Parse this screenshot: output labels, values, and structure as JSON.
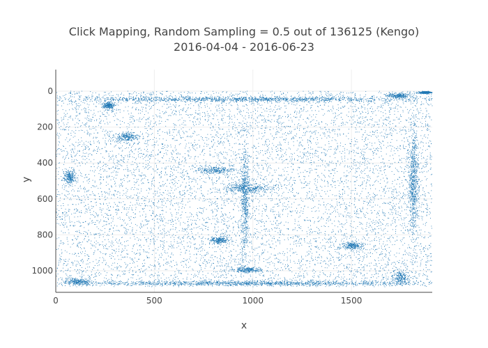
{
  "chart_data": {
    "type": "scatter",
    "title": "Click Mapping, Random Sampling = 0.5 out of 136125 (Kengo)",
    "subtitle": "2016-04-04 - 2016-06-23",
    "xlabel": "x",
    "ylabel": "y",
    "xlim": [
      0,
      1910
    ],
    "ylim": [
      1120,
      -120
    ],
    "y_reversed": true,
    "grid": true,
    "x_ticks": [
      0,
      500,
      1000,
      1500
    ],
    "y_ticks": [
      0,
      200,
      400,
      600,
      800,
      1000
    ],
    "marker_color": "#1f77b4",
    "sample_rate": 0.5,
    "total_points": 136125,
    "distribution": {
      "uniform_bounds": {
        "x": [
          0,
          1910
        ],
        "y": [
          0,
          1085
        ]
      },
      "clusters": [
        {
          "label": "top-band",
          "x": [
            0,
            1910
          ],
          "y": [
            30,
            60
          ]
        },
        {
          "label": "top-left-blob",
          "x": [
            240,
            300
          ],
          "y": [
            60,
            100
          ]
        },
        {
          "label": "top-right-blob",
          "x": [
            1680,
            1800
          ],
          "y": [
            10,
            40
          ]
        },
        {
          "label": "top-right-corner",
          "x": [
            1840,
            1910
          ],
          "y": [
            0,
            15
          ]
        },
        {
          "label": "left-upper-blob",
          "x": [
            300,
            420
          ],
          "y": [
            230,
            280
          ]
        },
        {
          "label": "left-middle-blob",
          "x": [
            40,
            100
          ],
          "y": [
            440,
            520
          ]
        },
        {
          "label": "center-left-streak",
          "x": [
            720,
            900
          ],
          "y": [
            420,
            460
          ]
        },
        {
          "label": "center-main-streak",
          "x": [
            850,
            1100
          ],
          "y": [
            510,
            570
          ]
        },
        {
          "label": "center-vertical",
          "x": [
            940,
            980
          ],
          "y": [
            300,
            900
          ]
        },
        {
          "label": "lower-center-blob",
          "x": [
            780,
            880
          ],
          "y": [
            810,
            850
          ]
        },
        {
          "label": "bottom-center-blob",
          "x": [
            900,
            1040
          ],
          "y": [
            980,
            1010
          ]
        },
        {
          "label": "right-lower-blob",
          "x": [
            1450,
            1560
          ],
          "y": [
            840,
            880
          ]
        },
        {
          "label": "right-vertical",
          "x": [
            1790,
            1840
          ],
          "y": [
            200,
            800
          ]
        },
        {
          "label": "bottom-left-blob",
          "x": [
            40,
            180
          ],
          "y": [
            1040,
            1080
          ]
        },
        {
          "label": "bottom-right-blob",
          "x": [
            1700,
            1800
          ],
          "y": [
            1000,
            1080
          ]
        },
        {
          "label": "bottom-band",
          "x": [
            0,
            1910
          ],
          "y": [
            1055,
            1085
          ]
        }
      ]
    }
  }
}
